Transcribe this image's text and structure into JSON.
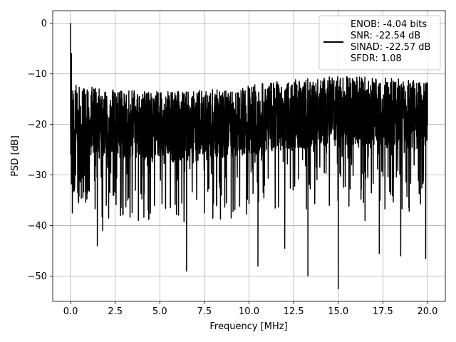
{
  "chart_data": {
    "type": "line",
    "title": "",
    "xlabel": "Frequency [MHz]",
    "ylabel": "PSD [dB]",
    "xlim": [
      -1.0,
      21.0
    ],
    "ylim": [
      -55.0,
      2.5
    ],
    "xticks": [
      0.0,
      2.5,
      5.0,
      7.5,
      10.0,
      12.5,
      15.0,
      17.5,
      20.0
    ],
    "xtick_labels": [
      "0.0",
      "2.5",
      "5.0",
      "7.5",
      "10.0",
      "12.5",
      "15.0",
      "17.5",
      "20.0"
    ],
    "yticks": [
      0,
      -10,
      -20,
      -30,
      -40,
      -50
    ],
    "ytick_labels": [
      "0",
      "−10",
      "−20",
      "−30",
      "−40",
      "−50"
    ],
    "grid": true,
    "legend": {
      "placement": "top-right",
      "entries": [
        "ENOB: -4.04 bits",
        "SNR: -22.54 dB",
        "SINAD: -22.57 dB",
        "SFDR: 1.08"
      ]
    },
    "series": [
      {
        "color": "#000000",
        "description_of_shape": "dense noise-like trace spanning 0–20 MHz, mostly between -30 and -8 dB, with a spike near 0 dB at DC and deep dips to about -52 dB",
        "x": [
          0.0,
          0.05,
          0.1,
          0.15,
          0.2,
          0.3,
          0.45,
          0.6,
          0.8,
          1.0,
          1.2,
          1.4,
          1.5,
          1.6,
          1.8,
          1.9,
          2.0,
          2.2,
          2.5,
          2.8,
          3.0,
          3.2,
          3.5,
          3.8,
          4.0,
          4.4,
          4.7,
          5.0,
          5.5,
          6.0,
          6.5,
          6.6,
          7.0,
          7.5,
          8.0,
          8.5,
          9.0,
          9.5,
          10.0,
          10.5,
          11.0,
          11.5,
          12.0,
          12.5,
          13.0,
          13.3,
          13.5,
          14.0,
          14.5,
          15.0,
          15.5,
          16.0,
          16.5,
          17.0,
          17.3,
          17.5,
          18.0,
          18.5,
          19.0,
          19.5,
          19.9,
          20.0
        ],
        "y": [
          0.0,
          -6.0,
          -37.5,
          -14.0,
          -21.0,
          -18.5,
          -35.5,
          -20.0,
          -24.0,
          -33.0,
          -22.0,
          -19.5,
          -44.0,
          -25.0,
          -41.0,
          -18.0,
          -36.0,
          -23.0,
          -21.0,
          -38.0,
          -26.0,
          -17.0,
          -22.0,
          -39.0,
          -20.0,
          -24.5,
          -36.0,
          -22.0,
          -18.0,
          -31.0,
          -49.0,
          -17.5,
          -25.0,
          -37.5,
          -20.0,
          -23.0,
          -38.5,
          -19.0,
          -26.0,
          -48.0,
          -21.0,
          -24.0,
          -44.5,
          -20.0,
          -27.0,
          -50.0,
          -19.5,
          -23.0,
          -36.0,
          -52.5,
          -22.0,
          -20.0,
          -39.0,
          -24.0,
          -45.5,
          -19.0,
          -26.0,
          -46.0,
          -21.0,
          -22.0,
          -46.5,
          -20.0
        ]
      }
    ]
  }
}
